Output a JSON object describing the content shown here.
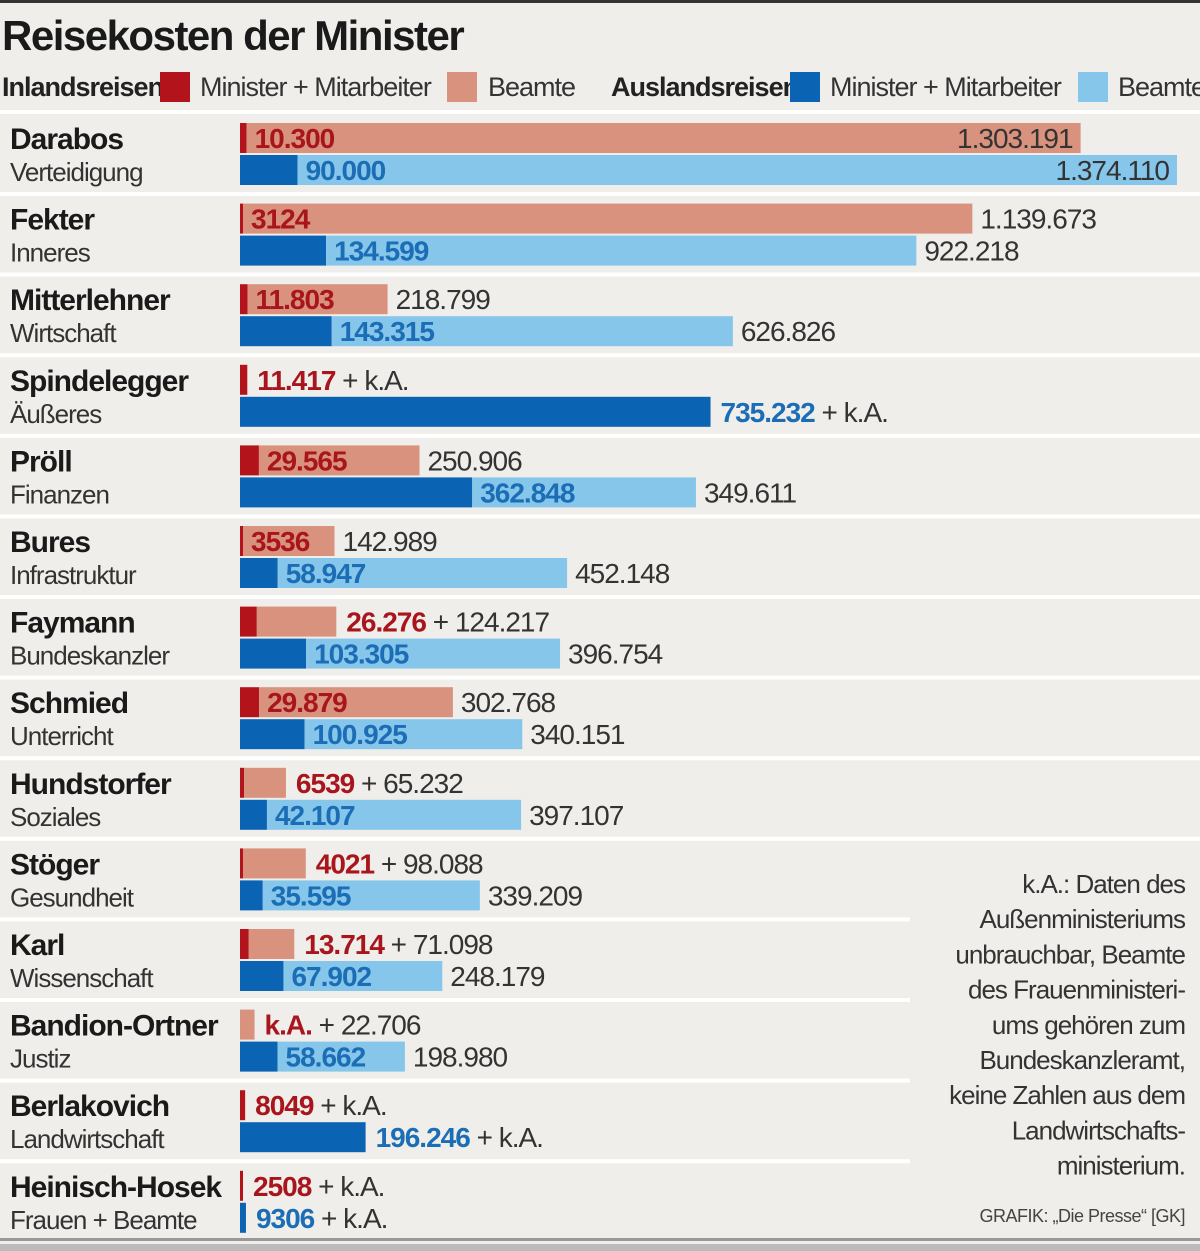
{
  "chart_data": {
    "type": "bar",
    "orientation": "horizontal",
    "stacked": true,
    "title": "Reisekosten der Minister",
    "plus_sep": " + ",
    "legend": {
      "placement": "top",
      "inland_label": "Inlandsreisen:",
      "foreign_label": "Auslandsreisen:",
      "minister_label": "Minister + Mitarbeiter",
      "beamte_label": "Beamte"
    },
    "colors": {
      "inland_minister": "#b3141c",
      "inland_beamte": "#d8927d",
      "foreign_minister": "#0b63b3",
      "foreign_beamte": "#86c6ea",
      "inland_text": "#a9151d",
      "foreign_text": "#1b6db6",
      "background": "#f0eeea"
    },
    "rows": [
      {
        "name": "Darabos",
        "dept": "Verteidigung",
        "inland": {
          "minister": "10.300",
          "beamte": "1.303.191"
        },
        "foreign": {
          "minister": "90.000",
          "beamte": "1.374.110"
        }
      },
      {
        "name": "Fekter",
        "dept": "Inneres",
        "inland": {
          "minister": "3124",
          "beamte": "1.139.673"
        },
        "foreign": {
          "minister": "134.599",
          "beamte": "922.218"
        }
      },
      {
        "name": "Mitterlehner",
        "dept": "Wirtschaft",
        "inland": {
          "minister": "11.803",
          "beamte": "218.799"
        },
        "foreign": {
          "minister": "143.315",
          "beamte": "626.826"
        }
      },
      {
        "name": "Spindelegger",
        "dept": "Äußeres",
        "inland": {
          "minister": "11.417",
          "beamte": "k.A."
        },
        "foreign": {
          "minister": "735.232",
          "beamte": "k.A."
        }
      },
      {
        "name": "Pröll",
        "dept": "Finanzen",
        "inland": {
          "minister": "29.565",
          "beamte": "250.906"
        },
        "foreign": {
          "minister": "362.848",
          "beamte": "349.611"
        }
      },
      {
        "name": "Bures",
        "dept": "Infrastruktur",
        "inland": {
          "minister": "3536",
          "beamte": "142.989"
        },
        "foreign": {
          "minister": "58.947",
          "beamte": "452.148"
        }
      },
      {
        "name": "Faymann",
        "dept": "Bundeskanzler",
        "inland": {
          "minister": "26.276",
          "beamte": "124.217"
        },
        "foreign": {
          "minister": "103.305",
          "beamte": "396.754"
        }
      },
      {
        "name": "Schmied",
        "dept": "Unterricht",
        "inland": {
          "minister": "29.879",
          "beamte": "302.768"
        },
        "foreign": {
          "minister": "100.925",
          "beamte": "340.151"
        }
      },
      {
        "name": "Hundstorfer",
        "dept": "Soziales",
        "inland": {
          "minister": "6539",
          "beamte": "65.232"
        },
        "foreign": {
          "minister": "42.107",
          "beamte": "397.107"
        }
      },
      {
        "name": "Stöger",
        "dept": "Gesundheit",
        "inland": {
          "minister": "4021",
          "beamte": "98.088"
        },
        "foreign": {
          "minister": "35.595",
          "beamte": "339.209"
        }
      },
      {
        "name": "Karl",
        "dept": "Wissenschaft",
        "inland": {
          "minister": "13.714",
          "beamte": "71.098"
        },
        "foreign": {
          "minister": "67.902",
          "beamte": "248.179"
        }
      },
      {
        "name": "Bandion-Ortner",
        "dept": "Justiz",
        "inland": {
          "minister": "k.A.",
          "beamte": "22.706"
        },
        "foreign": {
          "minister": "58.662",
          "beamte": "198.980"
        }
      },
      {
        "name": "Berlakovich",
        "dept": "Landwirtschaft",
        "inland": {
          "minister": "8049",
          "beamte": "k.A."
        },
        "foreign": {
          "minister": "196.246",
          "beamte": "k.A."
        }
      },
      {
        "name": "Heinisch-Hosek",
        "dept": "Frauen + Beamte",
        "inland": {
          "minister": "2508",
          "beamte": "k.A."
        },
        "foreign": {
          "minister": "9306",
          "beamte": "k.A."
        }
      }
    ],
    "footnote": [
      "k.A.: Daten des",
      "Außenministeriums",
      "unbrauchbar, Beamte",
      "des Frauenministeri-",
      "ums gehören zum",
      "Bundeskanzleramt,",
      "keine Zahlen aus dem",
      "Landwirtschafts-",
      "ministerium."
    ],
    "credit": "GRAFIK: „Die Presse“ [GK]"
  }
}
